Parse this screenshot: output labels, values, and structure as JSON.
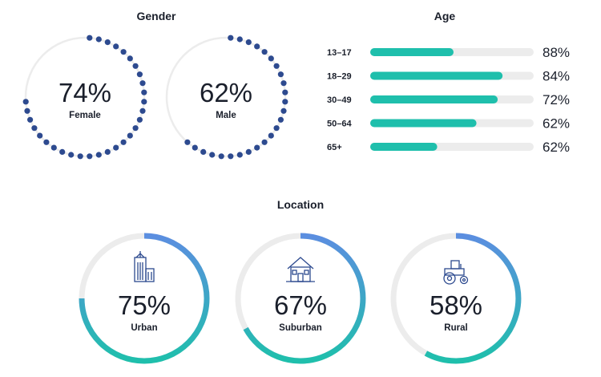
{
  "sections": {
    "gender_title": "Gender",
    "age_title": "Age",
    "location_title": "Location"
  },
  "colors": {
    "track": "#ececec",
    "dots": "#2d4a8f",
    "bar": "#1fbfac",
    "ring_start": "#5b8ee0",
    "ring_end": "#1fbfac"
  },
  "chart_data": [
    {
      "type": "donut",
      "title": "Gender",
      "style": "dotted",
      "series": [
        {
          "label": "Female",
          "value": 74,
          "display": "74%",
          "icon": ""
        },
        {
          "label": "Male",
          "value": 62,
          "display": "62%",
          "icon": ""
        }
      ]
    },
    {
      "type": "bar",
      "orientation": "horizontal",
      "title": "Age",
      "categories": [
        "13–17",
        "18–29",
        "30–49",
        "50–64",
        "65+"
      ],
      "values": [
        88,
        84,
        72,
        62,
        62
      ],
      "display": [
        "88%",
        "84%",
        "72%",
        "62%",
        "62%"
      ],
      "fill_fraction": [
        0.51,
        0.81,
        0.78,
        0.65,
        0.41
      ]
    },
    {
      "type": "donut",
      "title": "Location",
      "style": "gradient-ring",
      "series": [
        {
          "label": "Urban",
          "value": 75,
          "display": "75%",
          "icon": "city-building-icon"
        },
        {
          "label": "Suburban",
          "value": 67,
          "display": "67%",
          "icon": "house-icon"
        },
        {
          "label": "Rural",
          "value": 58,
          "display": "58%",
          "icon": "tractor-icon"
        }
      ]
    }
  ]
}
